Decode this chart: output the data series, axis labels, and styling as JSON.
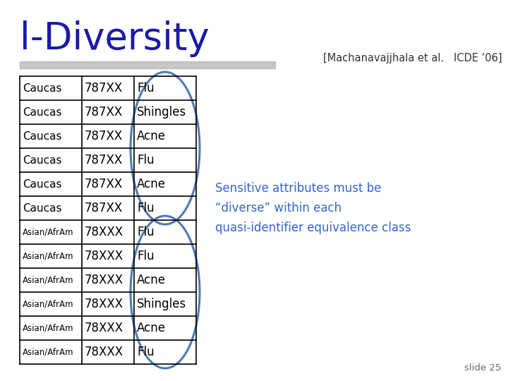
{
  "title": "l-Diversity",
  "reference": "[Machanavajjhala et al.   ICDE ’06]",
  "slide_num": "slide 25",
  "title_color": "#1a1aaa",
  "reference_color": "#333333",
  "annotation_text": "Sensitive attributes must be\n“diverse” within each\nquasi-identifier equivalence class",
  "annotation_color": "#3366cc",
  "table_data": [
    [
      "Caucas",
      "787XX",
      "Flu"
    ],
    [
      "Caucas",
      "787XX",
      "Shingles"
    ],
    [
      "Caucas",
      "787XX",
      "Acne"
    ],
    [
      "Caucas",
      "787XX",
      "Flu"
    ],
    [
      "Caucas",
      "787XX",
      "Acne"
    ],
    [
      "Caucas",
      "787XX",
      "Flu"
    ],
    [
      "Asian/AfrAm",
      "78XXX",
      "Flu"
    ],
    [
      "Asian/AfrAm",
      "78XXX",
      "Flu"
    ],
    [
      "Asian/AfrAm",
      "78XXX",
      "Acne"
    ],
    [
      "Asian/AfrAm",
      "78XXX",
      "Shingles"
    ],
    [
      "Asian/AfrAm",
      "78XXX",
      "Acne"
    ],
    [
      "Asian/AfrAm",
      "78XXX",
      "Flu"
    ]
  ],
  "bg_color": "#ffffff",
  "ellipse_color": "#4d7ab5",
  "divider_color": "#aaaaaa"
}
